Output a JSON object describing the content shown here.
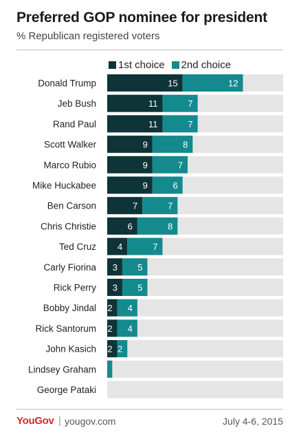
{
  "header": {
    "title": "Preferred GOP nominee for president",
    "subtitle": "% Republican registered voters"
  },
  "footer": {
    "brand": "YouGov",
    "separator": "|",
    "site": "yougov.com",
    "date": "July 4-6, 2015"
  },
  "colors": {
    "first_choice": "#0f3438",
    "second_choice": "#148a8e",
    "track": "#e5e5e5"
  },
  "chart_data": {
    "type": "bar",
    "orientation": "horizontal",
    "stacked": true,
    "title": "Preferred GOP nominee for president",
    "subtitle": "% Republican registered voters",
    "legend_position": "top",
    "categories": [
      "Donald Trump",
      "Jeb Bush",
      "Rand Paul",
      "Scott Walker",
      "Marco Rubio",
      "Mike Huckabee",
      "Ben Carson",
      "Chris Christie",
      "Ted Cruz",
      "Carly Fiorina",
      "Rick Perry",
      "Bobby Jindal",
      "Rick Santorum",
      "John Kasich",
      "Lindsey Graham",
      "George Pataki"
    ],
    "series": [
      {
        "name": "1st choice",
        "values": [
          15,
          11,
          11,
          9,
          9,
          9,
          7,
          6,
          4,
          3,
          3,
          2,
          2,
          2,
          0,
          0
        ]
      },
      {
        "name": "2nd choice",
        "values": [
          12,
          7,
          7,
          8,
          7,
          6,
          7,
          8,
          7,
          5,
          5,
          4,
          4,
          2,
          1,
          0
        ]
      }
    ],
    "data_labels_shown": [
      [
        "15",
        "11",
        "11",
        "9",
        "9",
        "9",
        "7",
        "6",
        "4",
        "3",
        "3",
        "2",
        "2",
        "2",
        "",
        ""
      ],
      [
        "12",
        "7",
        "7",
        "8",
        "7",
        "6",
        "7",
        "8",
        "7",
        "5",
        "5",
        "4",
        "4",
        "2",
        "1",
        ""
      ]
    ],
    "xlim": [
      0,
      35
    ],
    "grid": false
  }
}
